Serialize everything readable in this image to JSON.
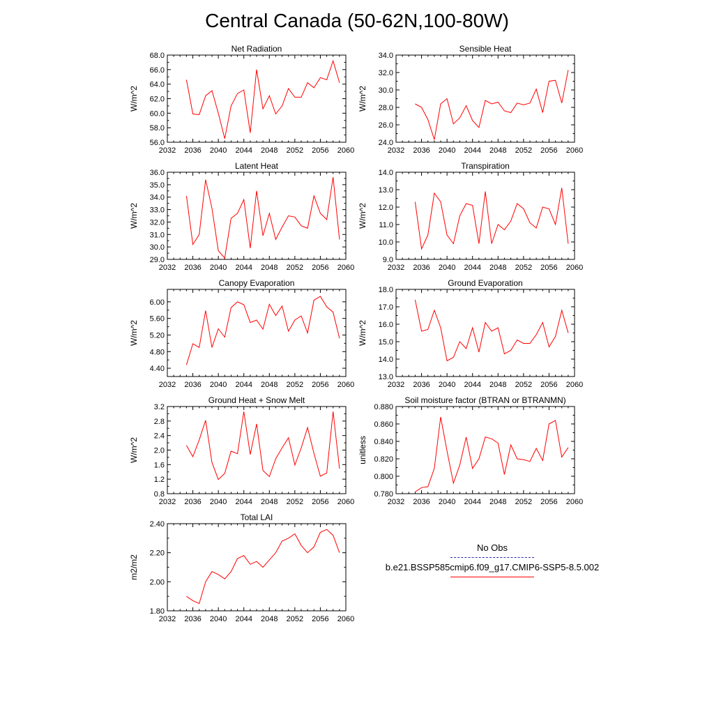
{
  "title": "Central Canada (50-62N,100-80W)",
  "legend": {
    "obs_label": "No Obs",
    "obs_color": "#2b2bb0",
    "model_label": "b.e21.BSSP585cmip6.f09_g17.CMIP6-SSP5-8.5.002",
    "model_color": "#ff0000"
  },
  "chart_data": [
    {
      "type": "line",
      "title": "Net Radiation",
      "ylabel": "W/m^2",
      "xlim": [
        2032,
        2060
      ],
      "xticks": [
        2032,
        2036,
        2040,
        2044,
        2048,
        2052,
        2056,
        2060
      ],
      "ylim": [
        56.0,
        68.0
      ],
      "yticks": [
        "56.0",
        "58.0",
        "60.0",
        "62.0",
        "64.0",
        "66.0",
        "68.0"
      ],
      "x": [
        2035,
        2036,
        2037,
        2038,
        2039,
        2040,
        2041,
        2042,
        2043,
        2044,
        2045,
        2046,
        2047,
        2048,
        2049,
        2050,
        2051,
        2052,
        2053,
        2054,
        2055,
        2056,
        2057,
        2058,
        2059
      ],
      "values": [
        64.6,
        59.9,
        59.8,
        62.4,
        63.1,
        60.0,
        56.5,
        61.0,
        62.7,
        63.2,
        57.3,
        66.0,
        60.6,
        62.4,
        59.9,
        61.0,
        63.4,
        62.2,
        62.2,
        64.2,
        63.5,
        64.9,
        64.6,
        67.2,
        64.2
      ]
    },
    {
      "type": "line",
      "title": "Sensible Heat",
      "ylabel": "W/m^2",
      "xlim": [
        2032,
        2060
      ],
      "xticks": [
        2032,
        2036,
        2040,
        2044,
        2048,
        2052,
        2056,
        2060
      ],
      "ylim": [
        24.0,
        34.0
      ],
      "yticks": [
        "24.0",
        "26.0",
        "28.0",
        "30.0",
        "32.0",
        "34.0"
      ],
      "x": [
        2035,
        2036,
        2037,
        2038,
        2039,
        2040,
        2041,
        2042,
        2043,
        2044,
        2045,
        2046,
        2047,
        2048,
        2049,
        2050,
        2051,
        2052,
        2053,
        2054,
        2055,
        2056,
        2057,
        2058,
        2059
      ],
      "values": [
        28.4,
        28.0,
        26.6,
        24.3,
        28.4,
        29.0,
        26.1,
        26.8,
        28.2,
        26.5,
        25.7,
        28.8,
        28.4,
        28.6,
        27.6,
        27.4,
        28.5,
        28.3,
        28.5,
        30.1,
        27.4,
        31.0,
        31.1,
        28.5,
        32.3
      ]
    },
    {
      "type": "line",
      "title": "Latent Heat",
      "ylabel": "W/m^2",
      "xlim": [
        2032,
        2060
      ],
      "xticks": [
        2032,
        2036,
        2040,
        2044,
        2048,
        2052,
        2056,
        2060
      ],
      "ylim": [
        29.0,
        36.0
      ],
      "yticks": [
        "29.0",
        "30.0",
        "31.0",
        "32.0",
        "33.0",
        "34.0",
        "35.0",
        "36.0"
      ],
      "x": [
        2035,
        2036,
        2037,
        2038,
        2039,
        2040,
        2041,
        2042,
        2043,
        2044,
        2045,
        2046,
        2047,
        2048,
        2049,
        2050,
        2051,
        2052,
        2053,
        2054,
        2055,
        2056,
        2057,
        2058,
        2059
      ],
      "values": [
        34.1,
        30.2,
        31.0,
        35.4,
        33.1,
        29.7,
        29.1,
        32.3,
        32.7,
        33.8,
        29.9,
        34.5,
        30.9,
        32.7,
        30.6,
        31.6,
        32.5,
        32.4,
        31.7,
        31.5,
        34.1,
        32.7,
        32.2,
        35.6,
        30.6
      ]
    },
    {
      "type": "line",
      "title": "Transpiration",
      "ylabel": "W/m^2",
      "xlim": [
        2032,
        2060
      ],
      "xticks": [
        2032,
        2036,
        2040,
        2044,
        2048,
        2052,
        2056,
        2060
      ],
      "ylim": [
        9.0,
        14.0
      ],
      "yticks": [
        "9.0",
        "10.0",
        "11.0",
        "12.0",
        "13.0",
        "14.0"
      ],
      "x": [
        2035,
        2036,
        2037,
        2038,
        2039,
        2040,
        2041,
        2042,
        2043,
        2044,
        2045,
        2046,
        2047,
        2048,
        2049,
        2050,
        2051,
        2052,
        2053,
        2054,
        2055,
        2056,
        2057,
        2058,
        2059
      ],
      "values": [
        12.3,
        9.6,
        10.4,
        12.8,
        12.3,
        10.4,
        9.9,
        11.5,
        12.2,
        12.1,
        9.9,
        12.9,
        9.9,
        11.0,
        10.7,
        11.2,
        12.2,
        11.9,
        11.1,
        10.8,
        12.0,
        11.9,
        11.0,
        13.1,
        9.9
      ]
    },
    {
      "type": "line",
      "title": "Canopy Evaporation",
      "ylabel": "W/m^2",
      "xlim": [
        2032,
        2060
      ],
      "xticks": [
        2032,
        2036,
        2040,
        2044,
        2048,
        2052,
        2056,
        2060
      ],
      "ylim": [
        4.2,
        6.3
      ],
      "yticks": [
        "4.40",
        "4.80",
        "5.20",
        "5.60",
        "6.00"
      ],
      "ytickvals": [
        4.4,
        4.8,
        5.2,
        5.6,
        6.0
      ],
      "x": [
        2035,
        2036,
        2037,
        2038,
        2039,
        2040,
        2041,
        2042,
        2043,
        2044,
        2045,
        2046,
        2047,
        2048,
        2049,
        2050,
        2051,
        2052,
        2053,
        2054,
        2055,
        2056,
        2057,
        2058,
        2059
      ],
      "values": [
        4.48,
        4.99,
        4.9,
        5.79,
        4.9,
        5.35,
        5.15,
        5.86,
        6.0,
        5.93,
        5.5,
        5.56,
        5.34,
        5.94,
        5.67,
        5.9,
        5.29,
        5.56,
        5.66,
        5.25,
        6.04,
        6.13,
        5.88,
        5.75,
        5.12
      ]
    },
    {
      "type": "line",
      "title": "Ground Evaporation",
      "ylabel": "W/m^2",
      "xlim": [
        2032,
        2060
      ],
      "xticks": [
        2032,
        2036,
        2040,
        2044,
        2048,
        2052,
        2056,
        2060
      ],
      "ylim": [
        13.0,
        18.0
      ],
      "yticks": [
        "13.0",
        "14.0",
        "15.0",
        "16.0",
        "17.0",
        "18.0"
      ],
      "x": [
        2035,
        2036,
        2037,
        2038,
        2039,
        2040,
        2041,
        2042,
        2043,
        2044,
        2045,
        2046,
        2047,
        2048,
        2049,
        2050,
        2051,
        2052,
        2053,
        2054,
        2055,
        2056,
        2057,
        2058,
        2059
      ],
      "values": [
        17.4,
        15.6,
        15.7,
        16.8,
        15.8,
        13.9,
        14.1,
        15.0,
        14.6,
        15.8,
        14.4,
        16.1,
        15.6,
        15.8,
        14.3,
        14.5,
        15.1,
        14.9,
        14.9,
        15.4,
        16.1,
        14.7,
        15.3,
        16.8,
        15.5
      ]
    },
    {
      "type": "line",
      "title": "Ground Heat + Snow Melt",
      "ylabel": "W/m^2",
      "xlim": [
        2032,
        2060
      ],
      "xticks": [
        2032,
        2036,
        2040,
        2044,
        2048,
        2052,
        2056,
        2060
      ],
      "ylim": [
        0.8,
        3.2
      ],
      "yticks": [
        "0.8",
        "1.2",
        "1.6",
        "2.0",
        "2.4",
        "2.8",
        "3.2"
      ],
      "x": [
        2035,
        2036,
        2037,
        2038,
        2039,
        2040,
        2041,
        2042,
        2043,
        2044,
        2045,
        2046,
        2047,
        2048,
        2049,
        2050,
        2051,
        2052,
        2053,
        2054,
        2055,
        2056,
        2057,
        2058,
        2059
      ],
      "values": [
        2.13,
        1.82,
        2.28,
        2.82,
        1.66,
        1.19,
        1.36,
        1.97,
        1.9,
        3.06,
        1.88,
        2.72,
        1.44,
        1.27,
        1.76,
        2.06,
        2.34,
        1.59,
        2.06,
        2.62,
        1.91,
        1.28,
        1.37,
        3.06,
        1.49
      ]
    },
    {
      "type": "line",
      "title": "Soil moisture factor (BTRAN or BTRANMN)",
      "ylabel": "unitless",
      "xlim": [
        2032,
        2060
      ],
      "xticks": [
        2032,
        2036,
        2040,
        2044,
        2048,
        2052,
        2056,
        2060
      ],
      "ylim": [
        0.78,
        0.88
      ],
      "yticks": [
        "0.780",
        "0.800",
        "0.820",
        "0.840",
        "0.860",
        "0.880"
      ],
      "x": [
        2035,
        2036,
        2037,
        2038,
        2039,
        2040,
        2041,
        2042,
        2043,
        2044,
        2045,
        2046,
        2047,
        2048,
        2049,
        2050,
        2051,
        2052,
        2053,
        2054,
        2055,
        2056,
        2057,
        2058,
        2059
      ],
      "values": [
        0.782,
        0.787,
        0.788,
        0.809,
        0.868,
        0.829,
        0.792,
        0.813,
        0.845,
        0.809,
        0.82,
        0.845,
        0.843,
        0.838,
        0.802,
        0.836,
        0.82,
        0.819,
        0.817,
        0.832,
        0.818,
        0.86,
        0.864,
        0.822,
        0.833
      ]
    },
    {
      "type": "line",
      "title": "Total LAI",
      "ylabel": "m2/m2",
      "xlim": [
        2032,
        2060
      ],
      "xticks": [
        2032,
        2036,
        2040,
        2044,
        2048,
        2052,
        2056,
        2060
      ],
      "ylim": [
        1.8,
        2.4
      ],
      "yticks": [
        "1.80",
        "2.00",
        "2.20",
        "2.40"
      ],
      "ytickvals": [
        1.8,
        2.0,
        2.2,
        2.4
      ],
      "x": [
        2035,
        2036,
        2037,
        2038,
        2039,
        2040,
        2041,
        2042,
        2043,
        2044,
        2045,
        2046,
        2047,
        2048,
        2049,
        2050,
        2051,
        2052,
        2053,
        2054,
        2055,
        2056,
        2057,
        2058,
        2059
      ],
      "values": [
        1.9,
        1.87,
        1.85,
        2.0,
        2.07,
        2.05,
        2.02,
        2.07,
        2.16,
        2.18,
        2.12,
        2.14,
        2.1,
        2.15,
        2.2,
        2.28,
        2.3,
        2.33,
        2.25,
        2.2,
        2.24,
        2.34,
        2.36,
        2.32,
        2.2
      ]
    }
  ]
}
